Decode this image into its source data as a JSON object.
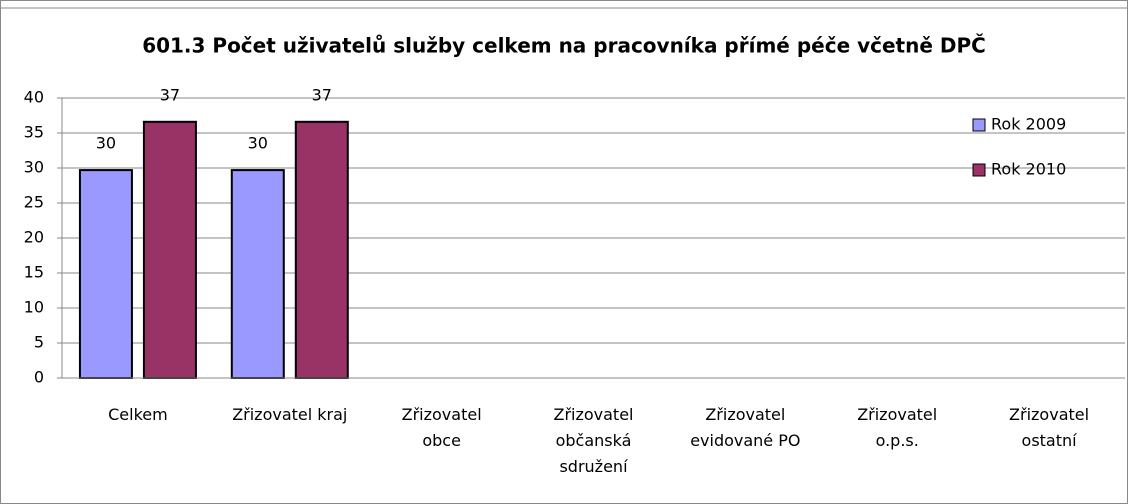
{
  "chart_data": {
    "type": "bar",
    "title": "601.3 Počet uživatelů služby celkem na pracovníka přímé péče včetně DPČ",
    "categories": [
      "Celkem",
      "Zřizovatel kraj",
      "Zřizovatel\nobce",
      "Zřizovatel\nobčanská\nsdružení",
      "Zřizovatel\nevidované PO",
      "Zřizovatel\no.p.s.",
      "Zřizovatel\nostatní"
    ],
    "series": [
      {
        "name": "Rok 2009",
        "color": "#9999ff",
        "values": [
          29.7,
          29.7,
          null,
          null,
          null,
          null,
          null
        ],
        "value_labels": [
          "30",
          "30",
          null,
          null,
          null,
          null,
          null
        ]
      },
      {
        "name": "Rok 2010",
        "color": "#993366",
        "values": [
          36.6,
          36.6,
          null,
          null,
          null,
          null,
          null
        ],
        "value_labels": [
          "37",
          "37",
          null,
          null,
          null,
          null,
          null
        ]
      }
    ],
    "ylim": [
      0,
      40
    ],
    "yticks": [
      0,
      5,
      10,
      15,
      20,
      25,
      30,
      35,
      40
    ],
    "grid": true,
    "legend": "top-right"
  }
}
